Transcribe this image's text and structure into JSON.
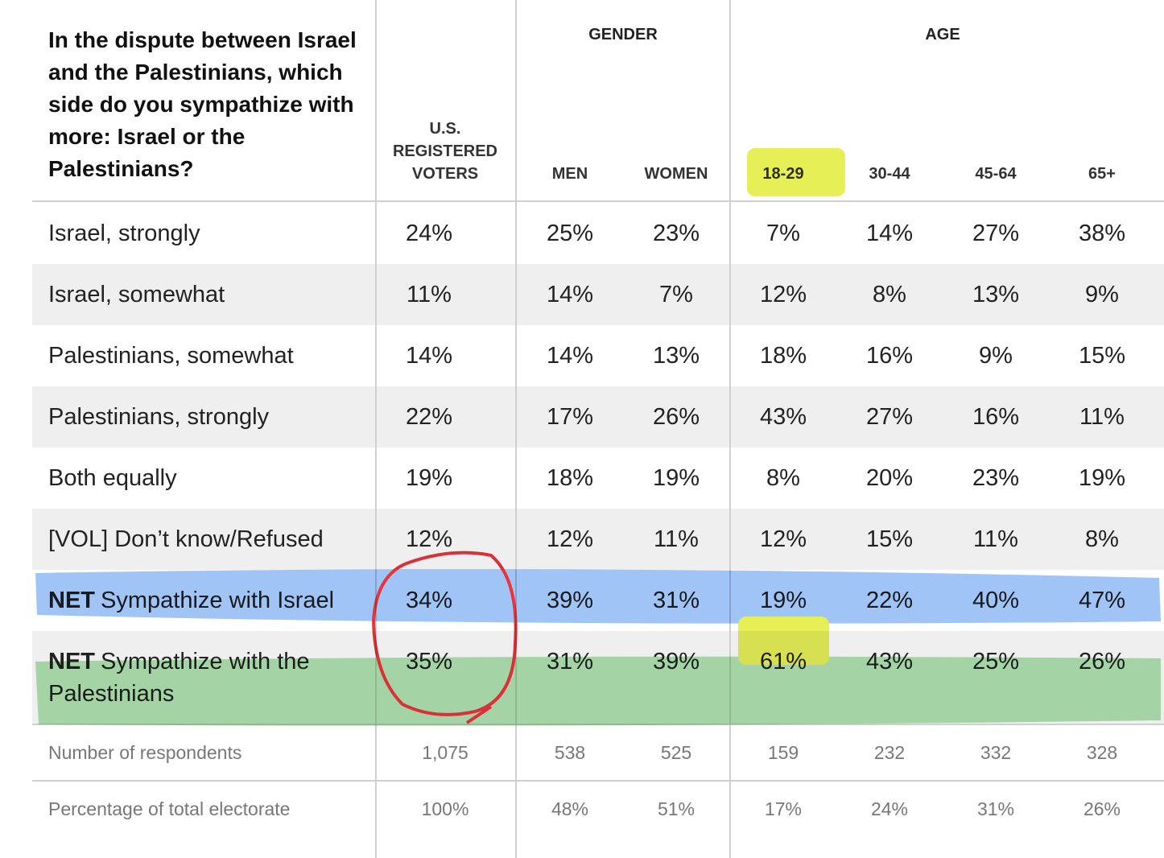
{
  "question": "In the dispute between Israel and the Palestinians, which side do you sympathize with more: Israel or the Palestinians?",
  "groups": [
    "GENDER",
    "AGE"
  ],
  "columns": [
    "U.S. REGISTERED VOTERS",
    "MEN",
    "WOMEN",
    "18-29",
    "30-44",
    "45-64",
    "65+"
  ],
  "rows": [
    {
      "label": "Israel, strongly",
      "values": [
        "24%",
        "25%",
        "23%",
        "7%",
        "14%",
        "27%",
        "38%"
      ]
    },
    {
      "label": "Israel, somewhat",
      "values": [
        "11%",
        "14%",
        "7%",
        "12%",
        "8%",
        "13%",
        "9%"
      ]
    },
    {
      "label": "Palestinians, somewhat",
      "values": [
        "14%",
        "14%",
        "13%",
        "18%",
        "16%",
        "9%",
        "15%"
      ]
    },
    {
      "label": "Palestinians, strongly",
      "values": [
        "22%",
        "17%",
        "26%",
        "43%",
        "27%",
        "16%",
        "11%"
      ]
    },
    {
      "label": "Both equally",
      "values": [
        "19%",
        "18%",
        "19%",
        "8%",
        "20%",
        "23%",
        "19%"
      ]
    },
    {
      "label": "[VOL] Don’t know/Refused",
      "values": [
        "12%",
        "12%",
        "11%",
        "12%",
        "15%",
        "11%",
        "8%"
      ]
    },
    {
      "bold": "NET",
      "label": "Sympathize with Israel",
      "values": [
        "34%",
        "39%",
        "31%",
        "19%",
        "22%",
        "40%",
        "47%"
      ]
    },
    {
      "bold": "NET",
      "label": "Sympathize with the Palestinians",
      "values": [
        "35%",
        "31%",
        "39%",
        "61%",
        "43%",
        "25%",
        "26%"
      ]
    }
  ],
  "footer_rows": [
    {
      "label": "Number of respondents",
      "values": [
        "1,075",
        "538",
        "525",
        "159",
        "232",
        "332",
        "328"
      ]
    },
    {
      "label": "Percentage of total electorate",
      "values": [
        "100%",
        "48%",
        "51%",
        "17%",
        "24%",
        "31%",
        "26%"
      ]
    }
  ]
}
